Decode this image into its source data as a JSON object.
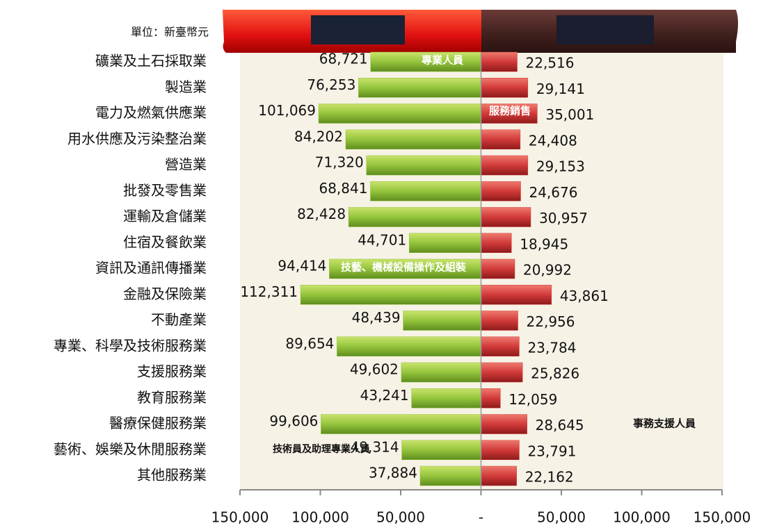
{
  "chart_data": {
    "type": "butterfly",
    "unit_label": "單位：新臺幣元",
    "categories": [
      "礦業及土石採取業",
      "製造業",
      "電力及燃氣供應業",
      "用水供應及污染整治業",
      "營造業",
      "批發及零售業",
      "運輸及倉儲業",
      "住宿及餐飲業",
      "資訊及通訊傳播業",
      "金融及保險業",
      "不動產業",
      "專業、科學及技術服務業",
      "支援服務業",
      "教育服務業",
      "醫療保健服務業",
      "藝術、娛樂及休閒服務業",
      "其他服務業"
    ],
    "series": [
      {
        "color": "#8fc23a",
        "values": [
          -68721,
          -76253,
          -101069,
          -84202,
          -71320,
          -68841,
          -82428,
          -44701,
          -94414,
          -112311,
          -48439,
          -89654,
          -49602,
          -43241,
          -99606,
          -49314,
          -37884
        ],
        "value_labels": [
          "68,721",
          "76,253",
          "101,069",
          "84,202",
          "71,320",
          "68,841",
          "82,428",
          "44,701",
          "94,414",
          "112,311",
          "48,439",
          "89,654",
          "49,602",
          "43,241",
          "99,606",
          "49,314",
          "37,884"
        ]
      },
      {
        "color": "#d23a3a",
        "values": [
          22516,
          29141,
          35001,
          24408,
          29153,
          24676,
          30957,
          18945,
          20992,
          43861,
          22956,
          23784,
          25826,
          12059,
          28645,
          23791,
          22162
        ],
        "value_labels": [
          "22,516",
          "29,141",
          "35,001",
          "24,408",
          "29,153",
          "24,676",
          "30,957",
          "18,945",
          "20,992",
          "43,861",
          "22,956",
          "23,784",
          "25,826",
          "12,059",
          "28,645",
          "23,791",
          "22,162"
        ]
      }
    ],
    "annotations": [
      "專業人員",
      "服務銷售",
      "技藝、機械設備操作及組裝",
      "事務支援人員",
      "技術員及助理專業人員"
    ],
    "xlim": [
      -150000,
      150000
    ],
    "xticks": [
      {
        "value": -150000,
        "label": "150,000"
      },
      {
        "value": -100000,
        "label": "100,000"
      },
      {
        "value": -50000,
        "label": "50,000"
      },
      {
        "value": 0,
        "label": "-"
      },
      {
        "value": 50000,
        "label": "50,000"
      },
      {
        "value": 100000,
        "label": "100,000"
      },
      {
        "value": 150000,
        "label": "150,000"
      }
    ]
  }
}
